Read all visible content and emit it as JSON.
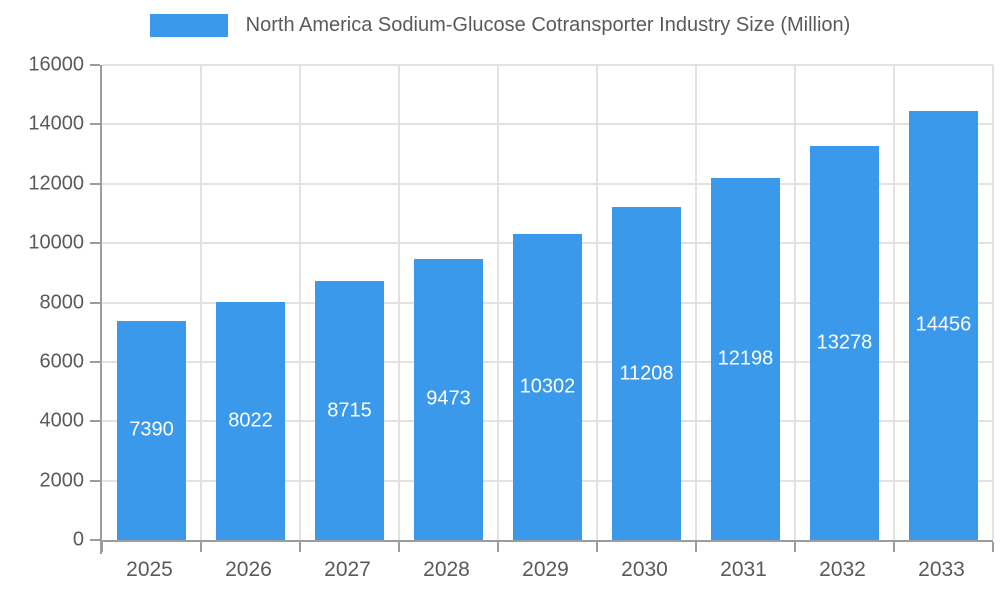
{
  "chart_data": {
    "type": "bar",
    "title": "North America Sodium-Glucose Cotransporter Industry Size (Million)",
    "categories": [
      "2025",
      "2026",
      "2027",
      "2028",
      "2029",
      "2030",
      "2031",
      "2032",
      "2033"
    ],
    "values": [
      7390,
      8022,
      8715,
      9473,
      10302,
      11208,
      12198,
      13278,
      14456
    ],
    "xlabel": "",
    "ylabel": "",
    "ylim": [
      0,
      16000
    ],
    "ytick_step": 2000,
    "yticks": [
      0,
      2000,
      4000,
      6000,
      8000,
      10000,
      12000,
      14000,
      16000
    ],
    "grid": true,
    "legend_position": "top-center",
    "bar_width_fraction": 0.7,
    "value_label_position": "middle",
    "colors": {
      "bar": "#3B99EC",
      "grid": "#E2E2E2",
      "axis": "#9C9C9C",
      "text": "#5A5A5A",
      "value_label": "#FFFFFF",
      "background": "#FFFFFF"
    }
  }
}
